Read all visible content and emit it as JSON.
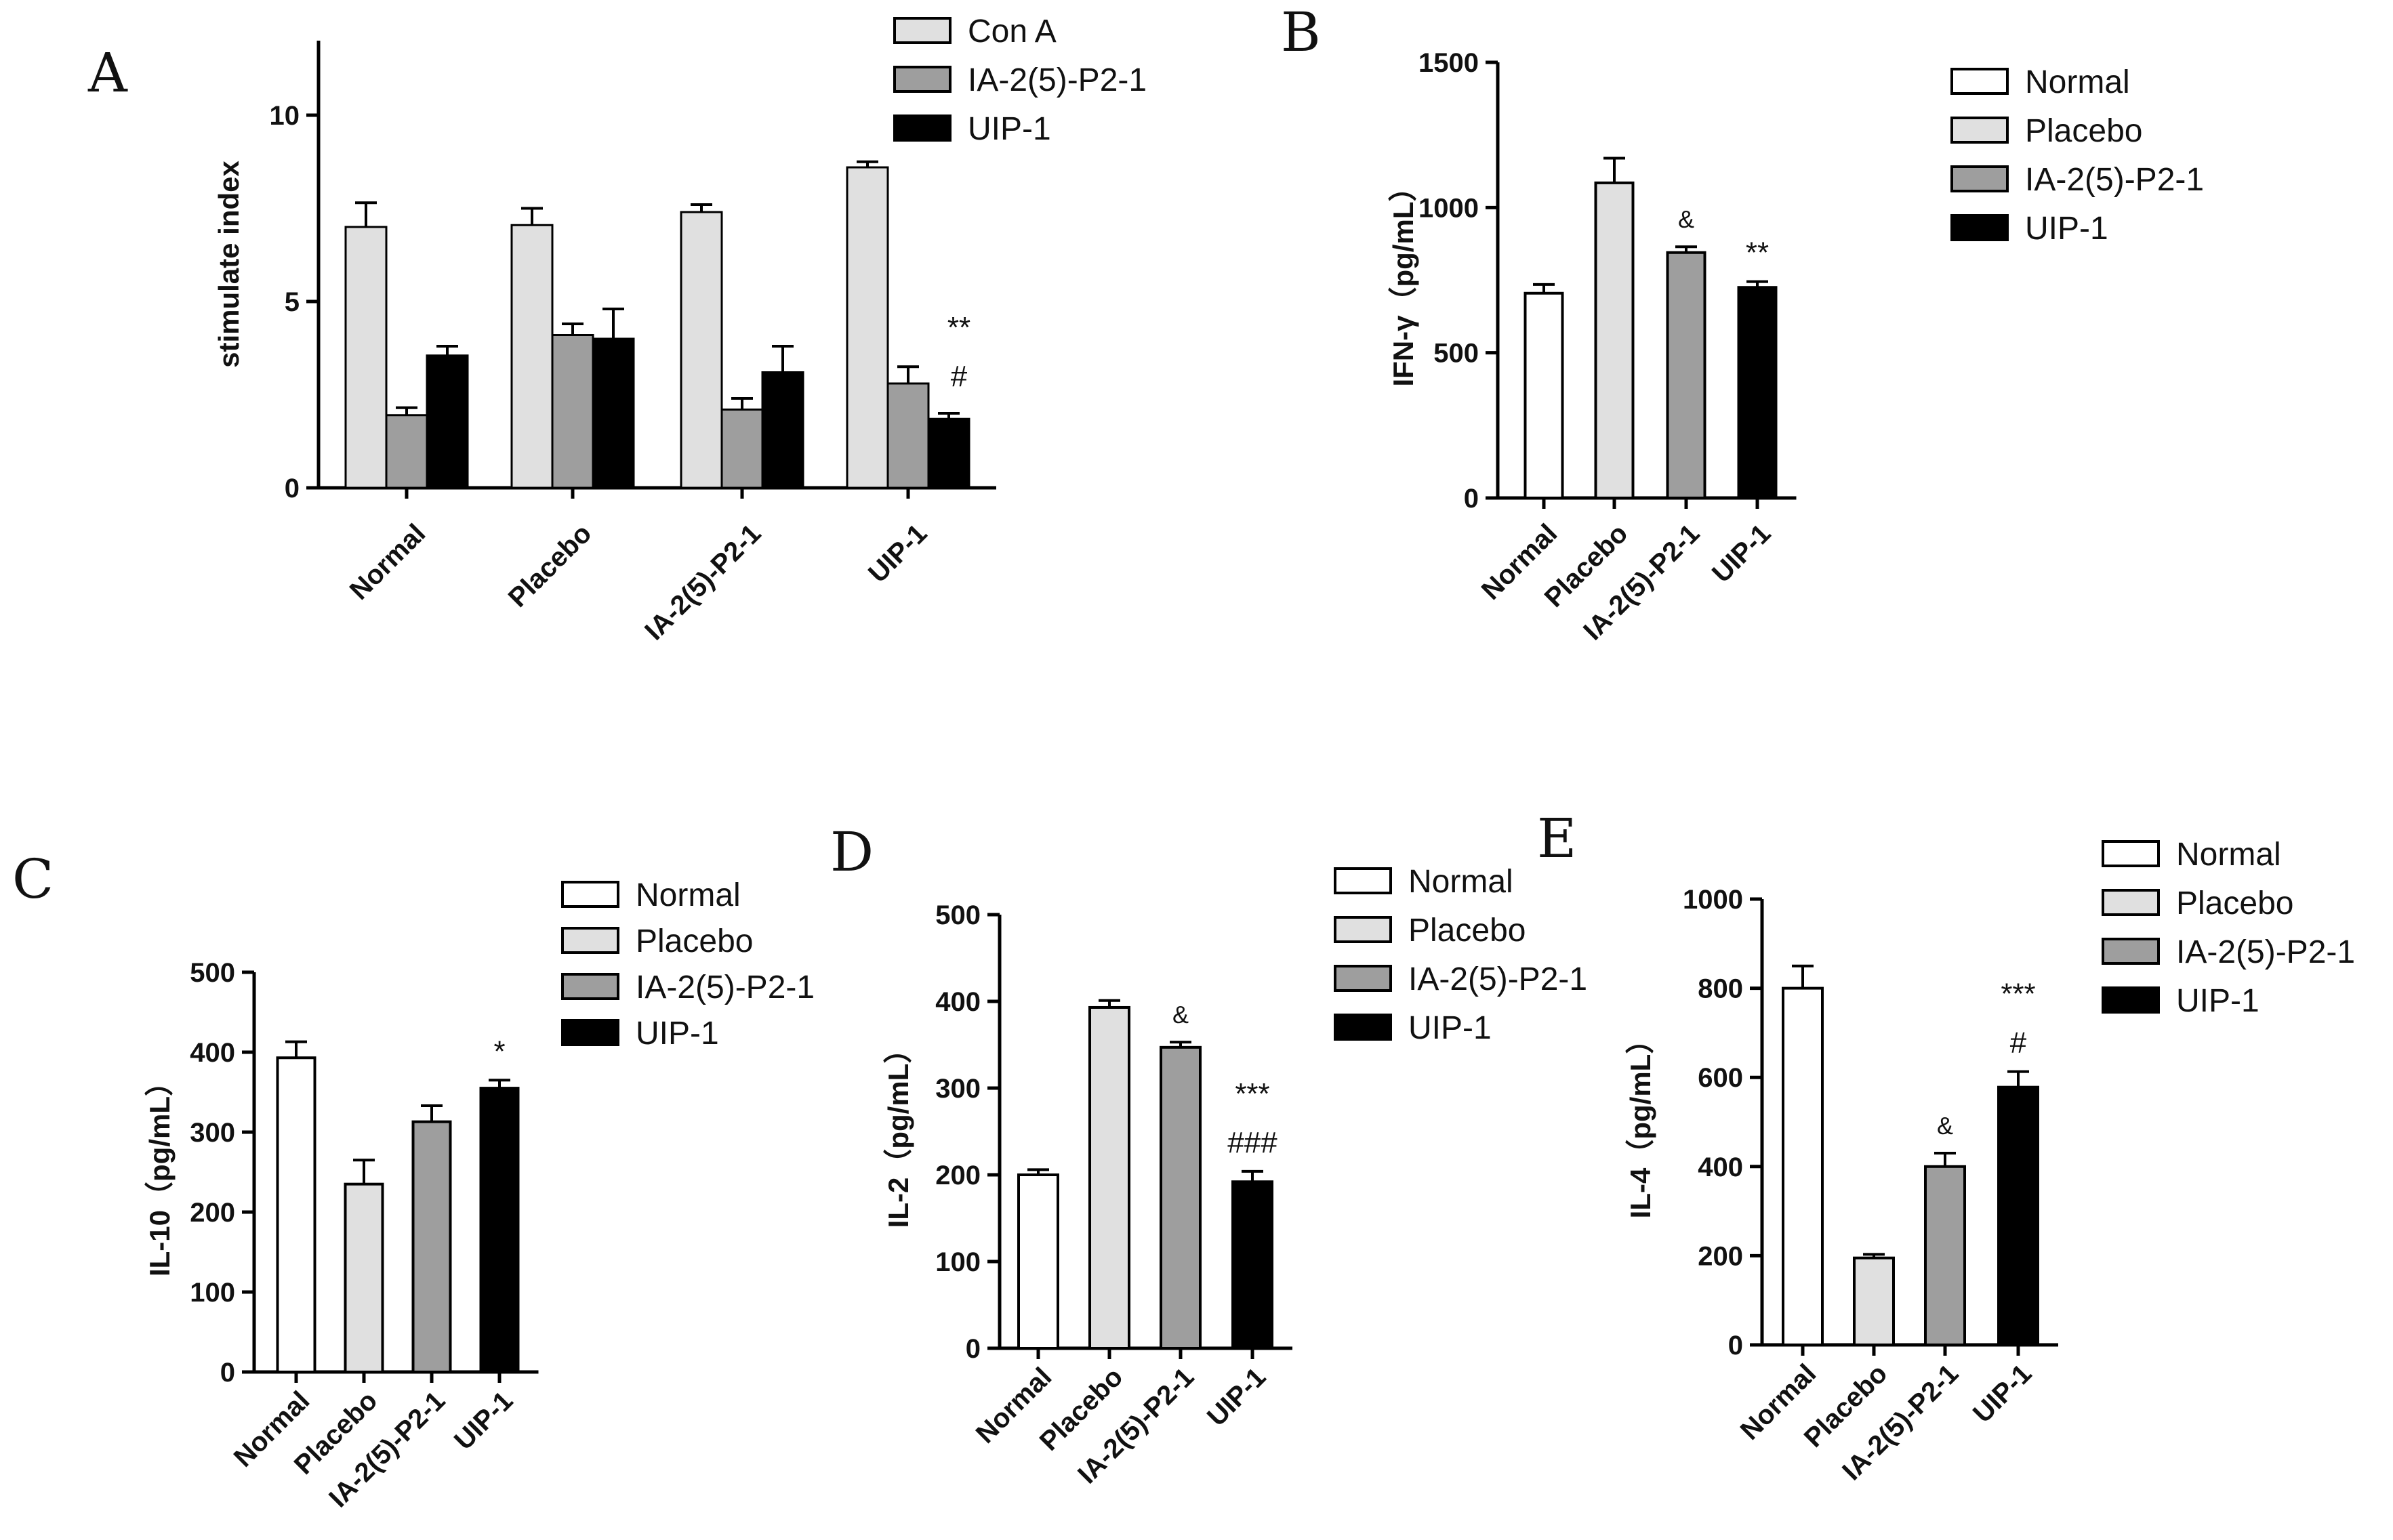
{
  "colors": {
    "white": "#ffffff",
    "light": "#e0e0e0",
    "mid": "#9e9e9e",
    "dark": "#000000",
    "stroke": "#000000"
  },
  "chart_data": [
    {
      "id": "A",
      "panel": "A",
      "type": "bar",
      "categories": [
        "Normal",
        "Placebo",
        "IA-2(5)-P2-1",
        "UIP-1"
      ],
      "series": [
        {
          "name": "Con A",
          "color": "light",
          "values": [
            7.0,
            7.05,
            7.4,
            8.6
          ],
          "errors": [
            0.65,
            0.45,
            0.2,
            0.15
          ]
        },
        {
          "name": "IA-2(5)-P2-1",
          "color": "mid",
          "values": [
            1.95,
            4.1,
            2.1,
            2.8
          ],
          "errors": [
            0.2,
            0.3,
            0.3,
            0.45
          ]
        },
        {
          "name": "UIP-1",
          "color": "dark",
          "values": [
            3.55,
            4.0,
            3.1,
            1.85
          ],
          "errors": [
            0.25,
            0.8,
            0.7,
            0.15
          ]
        }
      ],
      "ylabel": "stimulate index",
      "ylim": [
        0,
        12
      ],
      "yticks": [
        0,
        5,
        10
      ],
      "annotations": [
        {
          "category": 3,
          "series": 2,
          "lines": [
            "**",
            "#"
          ]
        }
      ]
    },
    {
      "id": "B",
      "panel": "B",
      "type": "bar",
      "categories": [
        "Normal",
        "Placebo",
        "IA-2(5)-P2-1",
        "UIP-1"
      ],
      "colors": [
        "white",
        "light",
        "mid",
        "dark"
      ],
      "values": [
        705,
        1085,
        845,
        725
      ],
      "errors": [
        30,
        85,
        20,
        20
      ],
      "legend": [
        "Normal",
        "Placebo",
        "IA-2(5)-P2-1",
        "UIP-1"
      ],
      "ylabel": "IFN-γ（pg/mL）",
      "ylim": [
        0,
        1500
      ],
      "yticks": [
        0,
        500,
        1000,
        1500
      ],
      "annotations": [
        {
          "category": 2,
          "lines": [
            "&"
          ],
          "small": true
        },
        {
          "category": 3,
          "lines": [
            "**"
          ]
        }
      ]
    },
    {
      "id": "C",
      "panel": "C",
      "type": "bar",
      "categories": [
        "Normal",
        "Placebo",
        "IA-2(5)-P2-1",
        "UIP-1"
      ],
      "colors": [
        "white",
        "light",
        "mid",
        "dark"
      ],
      "values": [
        393,
        235,
        313,
        355
      ],
      "errors": [
        20,
        30,
        20,
        10
      ],
      "legend": [
        "Normal",
        "Placebo",
        "IA-2(5)-P2-1",
        "UIP-1"
      ],
      "ylabel": "IL-10（pg/mL）",
      "ylim": [
        0,
        500
      ],
      "yticks": [
        0,
        100,
        200,
        300,
        400,
        500
      ],
      "annotations": [
        {
          "category": 3,
          "lines": [
            "*"
          ]
        }
      ]
    },
    {
      "id": "D",
      "panel": "D",
      "type": "bar",
      "categories": [
        "Normal",
        "Placebo",
        "IA-2(5)-P2-1",
        "UIP-1"
      ],
      "colors": [
        "white",
        "light",
        "mid",
        "dark"
      ],
      "values": [
        200,
        393,
        347,
        192
      ],
      "errors": [
        6,
        8,
        6,
        12
      ],
      "legend": [
        "Normal",
        "Placebo",
        "IA-2(5)-P2-1",
        "UIP-1"
      ],
      "ylabel": "IL-2（pg/mL）",
      "ylim": [
        0,
        500
      ],
      "yticks": [
        0,
        100,
        200,
        300,
        400,
        500
      ],
      "annotations": [
        {
          "category": 2,
          "lines": [
            "&"
          ],
          "small": true
        },
        {
          "category": 3,
          "lines": [
            "***",
            "###"
          ]
        }
      ]
    },
    {
      "id": "E",
      "panel": "E",
      "type": "bar",
      "categories": [
        "Normal",
        "Placebo",
        "IA-2(5)-P2-1",
        "UIP-1"
      ],
      "colors": [
        "white",
        "light",
        "mid",
        "dark"
      ],
      "values": [
        800,
        195,
        400,
        578
      ],
      "errors": [
        50,
        8,
        30,
        35
      ],
      "legend": [
        "Normal",
        "Placebo",
        "IA-2(5)-P2-1",
        "UIP-1"
      ],
      "ylabel": "IL-4（pg/mL）",
      "ylim": [
        0,
        1000
      ],
      "yticks": [
        0,
        200,
        400,
        600,
        800,
        1000
      ],
      "annotations": [
        {
          "category": 2,
          "lines": [
            "&"
          ],
          "small": true
        },
        {
          "category": 3,
          "lines": [
            "***",
            "#"
          ]
        }
      ]
    }
  ]
}
